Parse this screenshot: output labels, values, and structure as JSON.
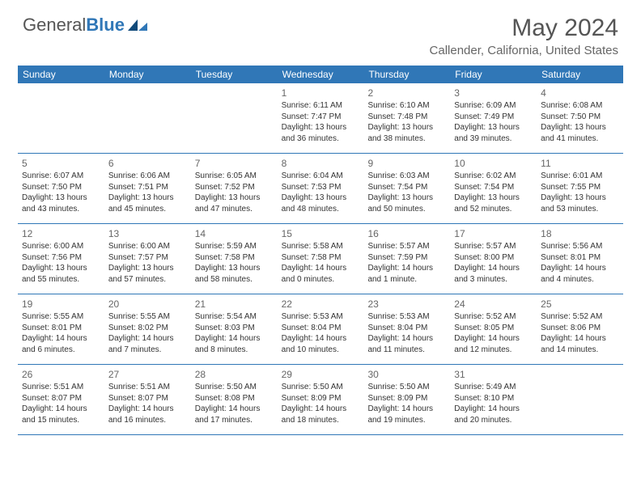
{
  "brand": {
    "name_part1": "General",
    "name_part2": "Blue",
    "logo_color": "#3077b7",
    "text_color": "#555555"
  },
  "header": {
    "title": "May 2024",
    "location": "Callender, California, United States"
  },
  "colors": {
    "header_bg": "#3077b7",
    "row_border": "#3077b7"
  },
  "weekdays": [
    "Sunday",
    "Monday",
    "Tuesday",
    "Wednesday",
    "Thursday",
    "Friday",
    "Saturday"
  ],
  "weeks": [
    [
      {
        "n": "",
        "sr": "",
        "ss": "",
        "d1": "",
        "d2": ""
      },
      {
        "n": "",
        "sr": "",
        "ss": "",
        "d1": "",
        "d2": ""
      },
      {
        "n": "",
        "sr": "",
        "ss": "",
        "d1": "",
        "d2": ""
      },
      {
        "n": "1",
        "sr": "Sunrise: 6:11 AM",
        "ss": "Sunset: 7:47 PM",
        "d1": "Daylight: 13 hours",
        "d2": "and 36 minutes."
      },
      {
        "n": "2",
        "sr": "Sunrise: 6:10 AM",
        "ss": "Sunset: 7:48 PM",
        "d1": "Daylight: 13 hours",
        "d2": "and 38 minutes."
      },
      {
        "n": "3",
        "sr": "Sunrise: 6:09 AM",
        "ss": "Sunset: 7:49 PM",
        "d1": "Daylight: 13 hours",
        "d2": "and 39 minutes."
      },
      {
        "n": "4",
        "sr": "Sunrise: 6:08 AM",
        "ss": "Sunset: 7:50 PM",
        "d1": "Daylight: 13 hours",
        "d2": "and 41 minutes."
      }
    ],
    [
      {
        "n": "5",
        "sr": "Sunrise: 6:07 AM",
        "ss": "Sunset: 7:50 PM",
        "d1": "Daylight: 13 hours",
        "d2": "and 43 minutes."
      },
      {
        "n": "6",
        "sr": "Sunrise: 6:06 AM",
        "ss": "Sunset: 7:51 PM",
        "d1": "Daylight: 13 hours",
        "d2": "and 45 minutes."
      },
      {
        "n": "7",
        "sr": "Sunrise: 6:05 AM",
        "ss": "Sunset: 7:52 PM",
        "d1": "Daylight: 13 hours",
        "d2": "and 47 minutes."
      },
      {
        "n": "8",
        "sr": "Sunrise: 6:04 AM",
        "ss": "Sunset: 7:53 PM",
        "d1": "Daylight: 13 hours",
        "d2": "and 48 minutes."
      },
      {
        "n": "9",
        "sr": "Sunrise: 6:03 AM",
        "ss": "Sunset: 7:54 PM",
        "d1": "Daylight: 13 hours",
        "d2": "and 50 minutes."
      },
      {
        "n": "10",
        "sr": "Sunrise: 6:02 AM",
        "ss": "Sunset: 7:54 PM",
        "d1": "Daylight: 13 hours",
        "d2": "and 52 minutes."
      },
      {
        "n": "11",
        "sr": "Sunrise: 6:01 AM",
        "ss": "Sunset: 7:55 PM",
        "d1": "Daylight: 13 hours",
        "d2": "and 53 minutes."
      }
    ],
    [
      {
        "n": "12",
        "sr": "Sunrise: 6:00 AM",
        "ss": "Sunset: 7:56 PM",
        "d1": "Daylight: 13 hours",
        "d2": "and 55 minutes."
      },
      {
        "n": "13",
        "sr": "Sunrise: 6:00 AM",
        "ss": "Sunset: 7:57 PM",
        "d1": "Daylight: 13 hours",
        "d2": "and 57 minutes."
      },
      {
        "n": "14",
        "sr": "Sunrise: 5:59 AM",
        "ss": "Sunset: 7:58 PM",
        "d1": "Daylight: 13 hours",
        "d2": "and 58 minutes."
      },
      {
        "n": "15",
        "sr": "Sunrise: 5:58 AM",
        "ss": "Sunset: 7:58 PM",
        "d1": "Daylight: 14 hours",
        "d2": "and 0 minutes."
      },
      {
        "n": "16",
        "sr": "Sunrise: 5:57 AM",
        "ss": "Sunset: 7:59 PM",
        "d1": "Daylight: 14 hours",
        "d2": "and 1 minute."
      },
      {
        "n": "17",
        "sr": "Sunrise: 5:57 AM",
        "ss": "Sunset: 8:00 PM",
        "d1": "Daylight: 14 hours",
        "d2": "and 3 minutes."
      },
      {
        "n": "18",
        "sr": "Sunrise: 5:56 AM",
        "ss": "Sunset: 8:01 PM",
        "d1": "Daylight: 14 hours",
        "d2": "and 4 minutes."
      }
    ],
    [
      {
        "n": "19",
        "sr": "Sunrise: 5:55 AM",
        "ss": "Sunset: 8:01 PM",
        "d1": "Daylight: 14 hours",
        "d2": "and 6 minutes."
      },
      {
        "n": "20",
        "sr": "Sunrise: 5:55 AM",
        "ss": "Sunset: 8:02 PM",
        "d1": "Daylight: 14 hours",
        "d2": "and 7 minutes."
      },
      {
        "n": "21",
        "sr": "Sunrise: 5:54 AM",
        "ss": "Sunset: 8:03 PM",
        "d1": "Daylight: 14 hours",
        "d2": "and 8 minutes."
      },
      {
        "n": "22",
        "sr": "Sunrise: 5:53 AM",
        "ss": "Sunset: 8:04 PM",
        "d1": "Daylight: 14 hours",
        "d2": "and 10 minutes."
      },
      {
        "n": "23",
        "sr": "Sunrise: 5:53 AM",
        "ss": "Sunset: 8:04 PM",
        "d1": "Daylight: 14 hours",
        "d2": "and 11 minutes."
      },
      {
        "n": "24",
        "sr": "Sunrise: 5:52 AM",
        "ss": "Sunset: 8:05 PM",
        "d1": "Daylight: 14 hours",
        "d2": "and 12 minutes."
      },
      {
        "n": "25",
        "sr": "Sunrise: 5:52 AM",
        "ss": "Sunset: 8:06 PM",
        "d1": "Daylight: 14 hours",
        "d2": "and 14 minutes."
      }
    ],
    [
      {
        "n": "26",
        "sr": "Sunrise: 5:51 AM",
        "ss": "Sunset: 8:07 PM",
        "d1": "Daylight: 14 hours",
        "d2": "and 15 minutes."
      },
      {
        "n": "27",
        "sr": "Sunrise: 5:51 AM",
        "ss": "Sunset: 8:07 PM",
        "d1": "Daylight: 14 hours",
        "d2": "and 16 minutes."
      },
      {
        "n": "28",
        "sr": "Sunrise: 5:50 AM",
        "ss": "Sunset: 8:08 PM",
        "d1": "Daylight: 14 hours",
        "d2": "and 17 minutes."
      },
      {
        "n": "29",
        "sr": "Sunrise: 5:50 AM",
        "ss": "Sunset: 8:09 PM",
        "d1": "Daylight: 14 hours",
        "d2": "and 18 minutes."
      },
      {
        "n": "30",
        "sr": "Sunrise: 5:50 AM",
        "ss": "Sunset: 8:09 PM",
        "d1": "Daylight: 14 hours",
        "d2": "and 19 minutes."
      },
      {
        "n": "31",
        "sr": "Sunrise: 5:49 AM",
        "ss": "Sunset: 8:10 PM",
        "d1": "Daylight: 14 hours",
        "d2": "and 20 minutes."
      },
      {
        "n": "",
        "sr": "",
        "ss": "",
        "d1": "",
        "d2": ""
      }
    ]
  ]
}
